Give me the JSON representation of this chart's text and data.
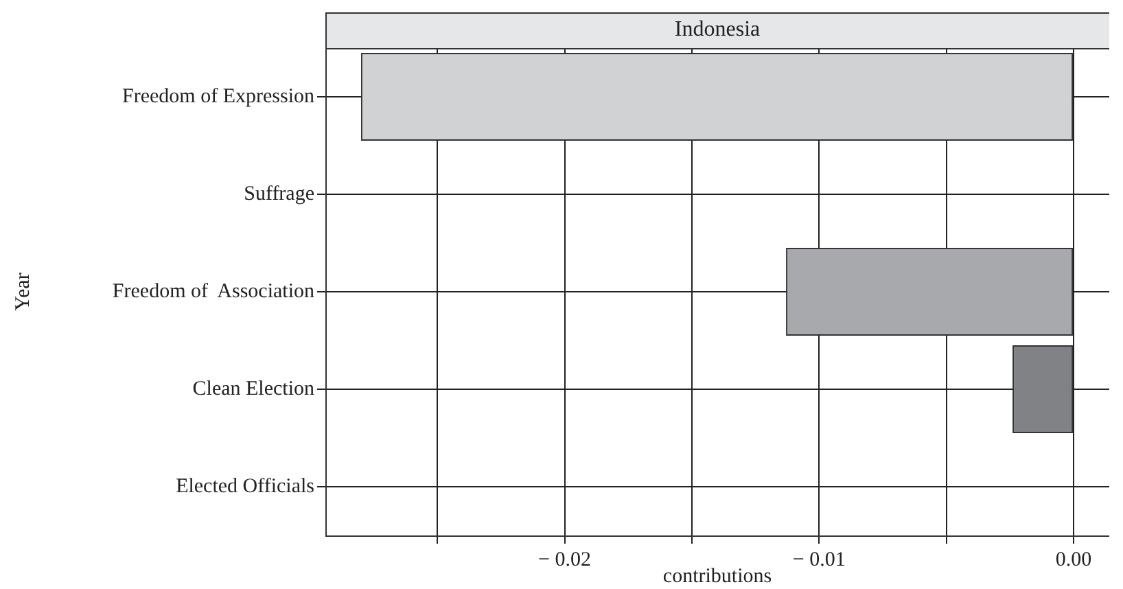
{
  "chart_data": {
    "type": "bar",
    "orientation": "horizontal",
    "title": "Indonesia",
    "xlabel": "contributions",
    "ylabel": "Year",
    "categories": [
      "Freedom of Expression",
      "Suffrage",
      "Freedom of  Association",
      "Clean Election",
      "Elected Officials"
    ],
    "values": [
      -0.028,
      0,
      -0.0113,
      -0.0024,
      0
    ],
    "colors": [
      "#d1d2d4",
      "#a7a9ac",
      "#a7a9ac",
      "#808285",
      "#808285"
    ],
    "xlim": [
      -0.0294,
      0.0014
    ],
    "xticks": [
      {
        "value": -0.025,
        "label": null
      },
      {
        "value": -0.02,
        "label": "− 0.02"
      },
      {
        "value": -0.015,
        "label": null
      },
      {
        "value": -0.01,
        "label": "− 0.01"
      },
      {
        "value": -0.005,
        "label": null
      },
      {
        "value": 0,
        "label": "0.00"
      }
    ],
    "grid": true,
    "legend": false
  }
}
